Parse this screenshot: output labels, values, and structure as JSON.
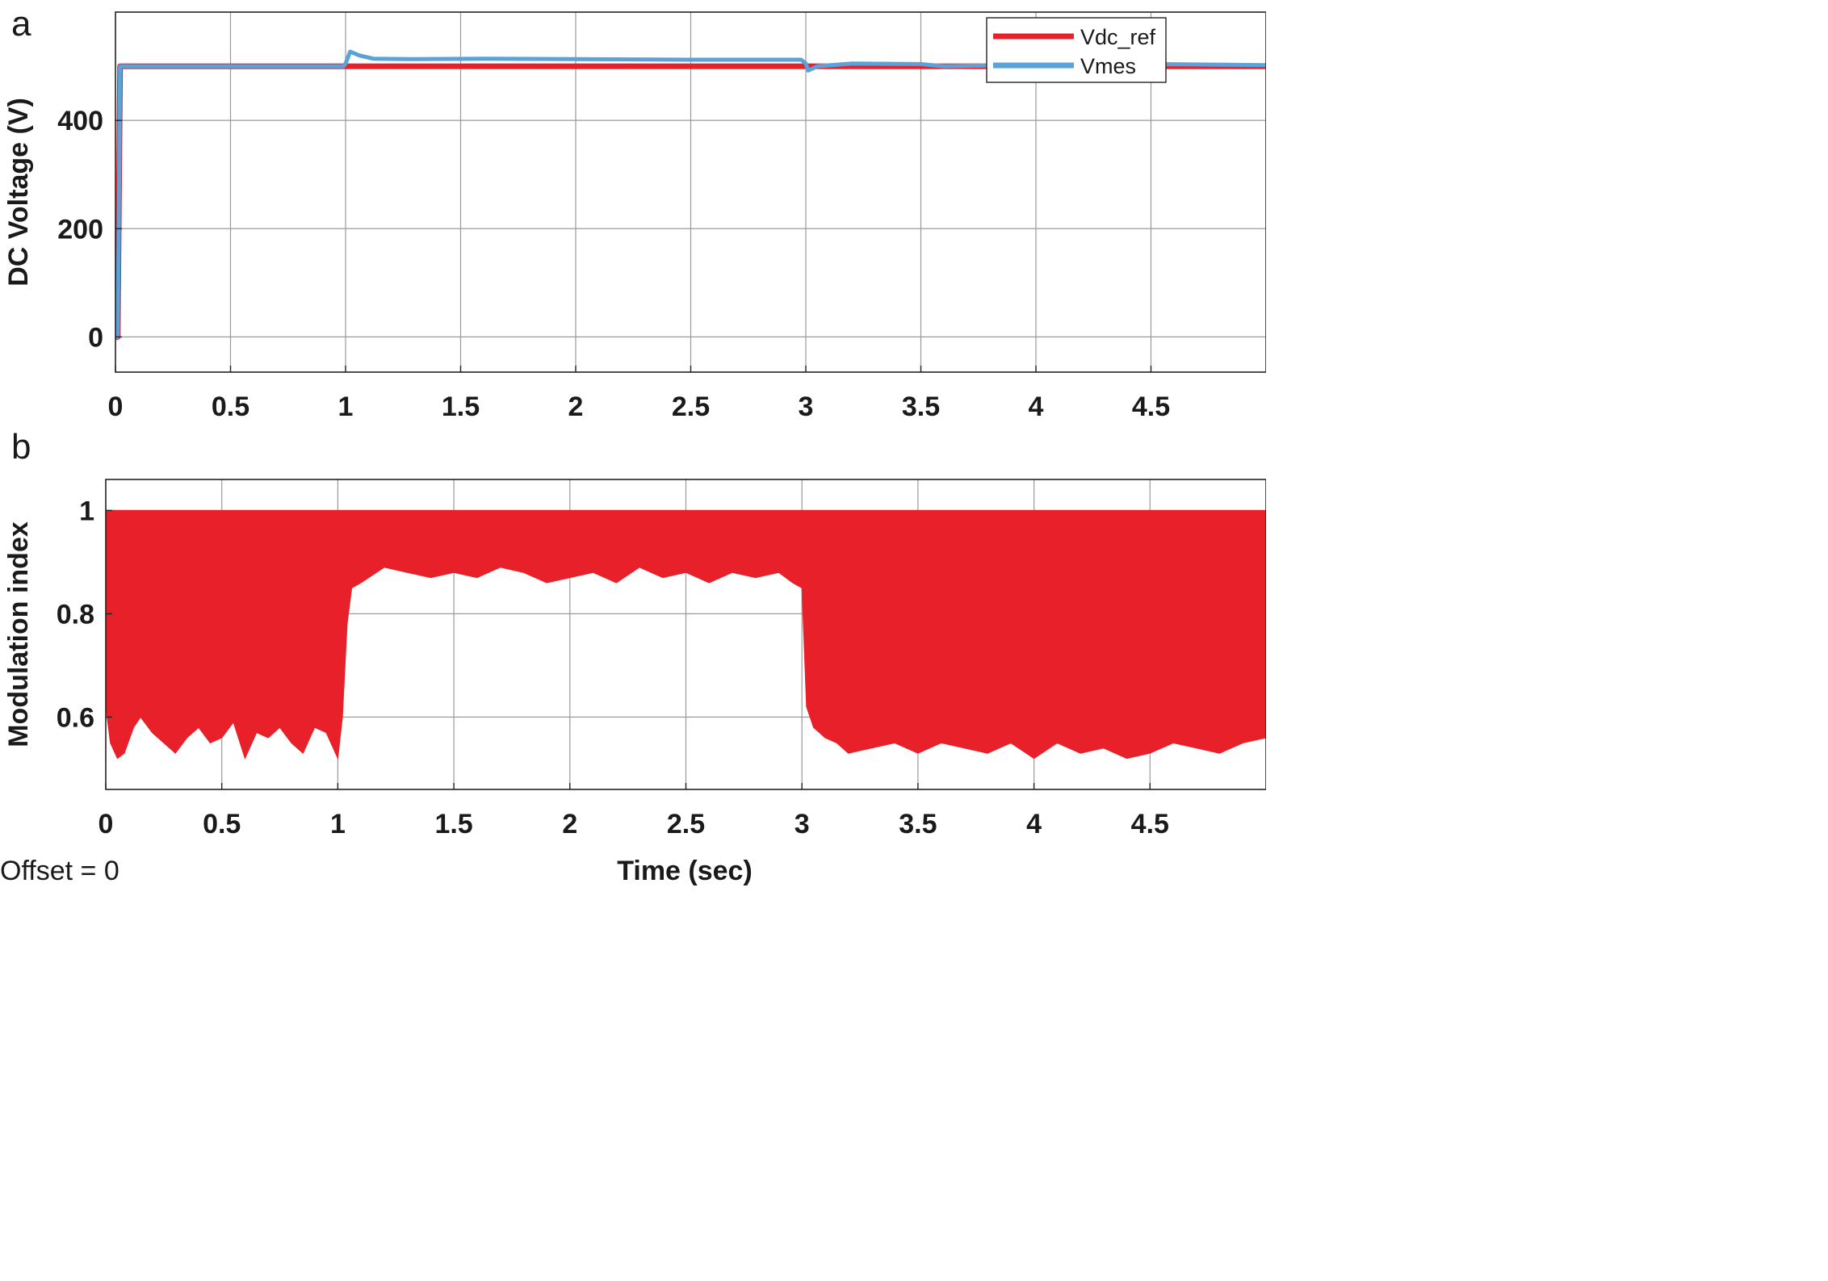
{
  "chart_data": [
    {
      "type": "line",
      "panel_label": "a",
      "ylabel": "DC Voltage (V)",
      "xlabel": "",
      "xlim": [
        0,
        5
      ],
      "ylim": [
        -65,
        600
      ],
      "xticks": [
        0,
        0.5,
        1,
        1.5,
        2,
        2.5,
        3,
        3.5,
        4,
        4.5
      ],
      "xtick_labels": [
        "0",
        "0.5",
        "1",
        "1.5",
        "2",
        "2.5",
        "3",
        "3.5",
        "4",
        "4.5"
      ],
      "yticks": [
        0,
        200,
        400
      ],
      "ytick_labels": [
        "0",
        "200",
        "400"
      ],
      "grid": true,
      "legend": {
        "placement": "top-right"
      },
      "series": [
        {
          "name": "Vdc_ref",
          "color": "#e8202a",
          "x": [
            0,
            0.01,
            0.02,
            5
          ],
          "y": [
            0,
            0,
            500,
            500
          ]
        },
        {
          "name": "Vmes",
          "color": "#5aa2d8",
          "x": [
            0,
            0.01,
            0.015,
            0.02,
            0.1,
            0.5,
            0.99,
            1.0,
            1.02,
            1.06,
            1.12,
            1.3,
            1.6,
            2.0,
            2.5,
            2.9,
            2.98,
            3.0,
            3.01,
            3.05,
            3.2,
            3.5,
            3.6,
            4.0,
            4.5,
            5.0
          ],
          "y": [
            0,
            0,
            250,
            500,
            500,
            500,
            500,
            505,
            527,
            520,
            514,
            513,
            514,
            513,
            512,
            512,
            512,
            505,
            492,
            500,
            505,
            504,
            500,
            503,
            504,
            502
          ]
        }
      ]
    },
    {
      "type": "area",
      "panel_label": "b",
      "ylabel": "Modulation index",
      "xlabel": "Time (sec)",
      "xlim": [
        0,
        5
      ],
      "ylim": [
        0.46,
        1.06
      ],
      "xticks": [
        0,
        0.5,
        1,
        1.5,
        2,
        2.5,
        3,
        3.5,
        4,
        4.5
      ],
      "xtick_labels": [
        "0",
        "0.5",
        "1",
        "1.5",
        "2",
        "2.5",
        "3",
        "3.5",
        "4",
        "4.5"
      ],
      "yticks": [
        0.6,
        0.8,
        1
      ],
      "ytick_labels": [
        "0.6",
        "0.8",
        "1"
      ],
      "grid": true,
      "series": [
        {
          "color": "#e8202a",
          "upper": 1.0,
          "x": [
            0,
            0.02,
            0.05,
            0.08,
            0.12,
            0.15,
            0.2,
            0.25,
            0.3,
            0.35,
            0.4,
            0.45,
            0.5,
            0.55,
            0.6,
            0.65,
            0.7,
            0.75,
            0.8,
            0.85,
            0.9,
            0.95,
            1.0,
            1.02,
            1.04,
            1.06,
            1.1,
            1.2,
            1.3,
            1.4,
            1.5,
            1.6,
            1.7,
            1.8,
            1.9,
            2.0,
            2.1,
            2.2,
            2.3,
            2.4,
            2.5,
            2.6,
            2.7,
            2.8,
            2.9,
            2.96,
            3.0,
            3.02,
            3.05,
            3.1,
            3.15,
            3.2,
            3.3,
            3.4,
            3.5,
            3.6,
            3.7,
            3.8,
            3.9,
            4.0,
            4.1,
            4.2,
            4.3,
            4.4,
            4.5,
            4.6,
            4.7,
            4.8,
            4.9,
            5.0
          ],
          "lower": [
            0.62,
            0.55,
            0.52,
            0.53,
            0.58,
            0.6,
            0.57,
            0.55,
            0.53,
            0.56,
            0.58,
            0.55,
            0.56,
            0.59,
            0.52,
            0.57,
            0.56,
            0.58,
            0.55,
            0.53,
            0.58,
            0.57,
            0.52,
            0.6,
            0.78,
            0.85,
            0.86,
            0.89,
            0.88,
            0.87,
            0.88,
            0.87,
            0.89,
            0.88,
            0.86,
            0.87,
            0.88,
            0.86,
            0.89,
            0.87,
            0.88,
            0.86,
            0.88,
            0.87,
            0.88,
            0.86,
            0.85,
            0.62,
            0.58,
            0.56,
            0.55,
            0.53,
            0.54,
            0.55,
            0.53,
            0.55,
            0.54,
            0.53,
            0.55,
            0.52,
            0.55,
            0.53,
            0.54,
            0.52,
            0.53,
            0.55,
            0.54,
            0.53,
            0.55,
            0.56
          ]
        }
      ]
    }
  ],
  "footer": {
    "offset_text": "Offset = 0"
  }
}
